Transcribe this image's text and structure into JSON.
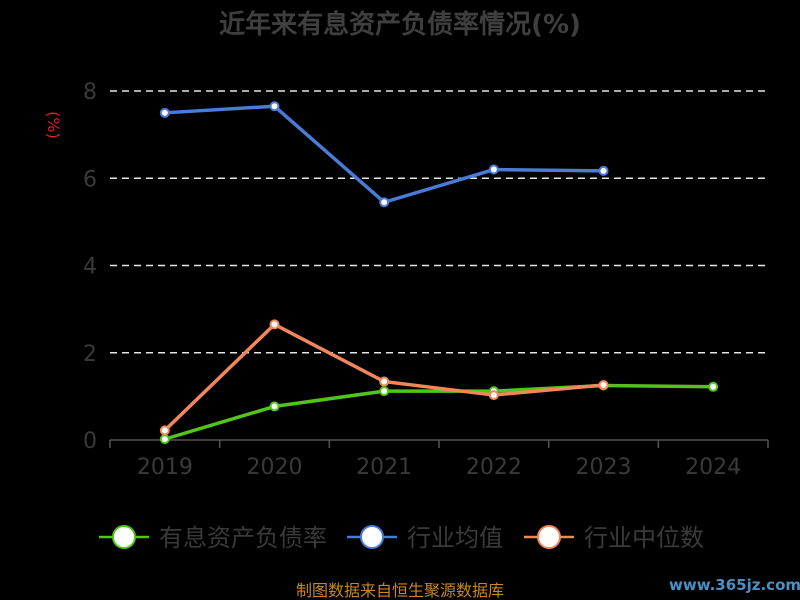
{
  "chart_data": {
    "type": "line",
    "title": "近年来有息资产负债率情况(%)",
    "unit_label": "(%)",
    "categories": [
      "2019",
      "2020",
      "2021",
      "2022",
      "2023",
      "2024"
    ],
    "ylim": [
      0,
      8
    ],
    "yticks": [
      "0",
      "2",
      "4",
      "6",
      "8"
    ],
    "grid": true,
    "legend_position": "bottom",
    "series": [
      {
        "name": "有息资产负债率",
        "color": "#52c41a",
        "values": [
          0.02,
          0.77,
          1.12,
          1.12,
          1.25,
          1.22
        ]
      },
      {
        "name": "行业均值",
        "color": "#4a7bd9",
        "values": [
          7.5,
          7.65,
          5.45,
          6.2,
          6.17,
          null
        ]
      },
      {
        "name": "行业中位数",
        "color": "#f4865a",
        "values": [
          0.22,
          2.65,
          1.34,
          1.03,
          1.26,
          null
        ]
      }
    ]
  },
  "footer": {
    "source": "制图数据来自恒生聚源数据库",
    "watermark": "www.365jz.com"
  }
}
